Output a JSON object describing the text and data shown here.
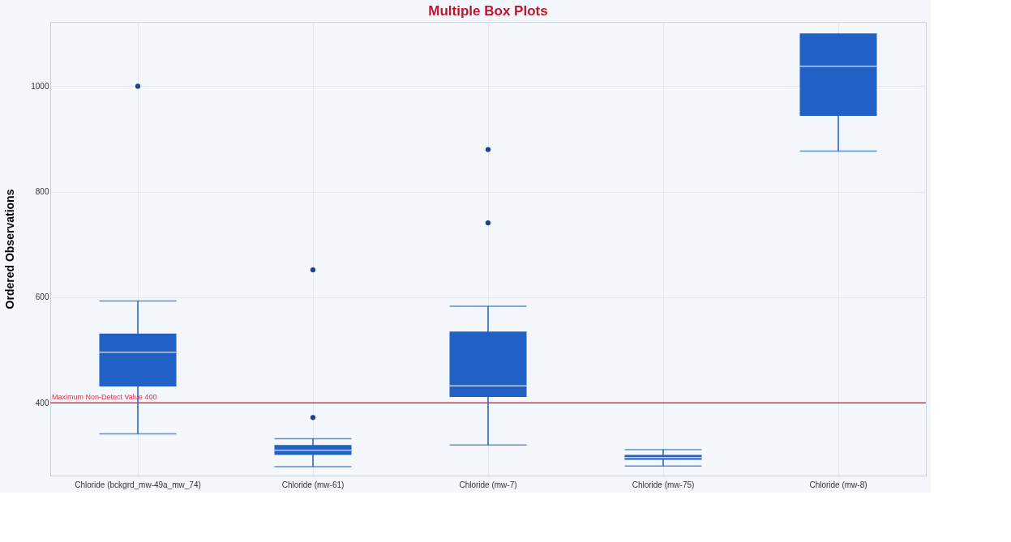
{
  "chart_data": {
    "type": "box",
    "title": "Multiple Box Plots",
    "ylabel": "Ordered Observations",
    "categories": [
      "Chloride (bckgrd_mw-49a_mw_74)",
      "Chloride (mw-61)",
      "Chloride (mw-7)",
      "Chloride (mw-75)",
      "Chloride (mw-8)"
    ],
    "boxes": [
      {
        "low": 341,
        "q1": 431,
        "median": 496,
        "q3": 531,
        "high": 593,
        "outliers": [
          1000
        ]
      },
      {
        "low": 279,
        "q1": 301,
        "median": 310,
        "q3": 320,
        "high": 332,
        "outliers": [
          652,
          372
        ]
      },
      {
        "low": 320,
        "q1": 411,
        "median": 432,
        "q3": 535,
        "high": 583,
        "outliers": [
          880,
          741
        ]
      },
      {
        "low": 280,
        "q1": 292,
        "median": 296,
        "q3": 301,
        "high": 311
      },
      {
        "low": 877,
        "q1": 944,
        "median": 1038,
        "q3": 1100,
        "high": 1100
      }
    ],
    "color": "#2160c4",
    "ylim": [
      262,
      1122
    ],
    "yticks": [
      400,
      600,
      800,
      1000
    ],
    "grid": true,
    "ref_lines": [
      {
        "axis": "y",
        "value": 400,
        "label": "Maximum Non-Detect Value 400",
        "color": "#e0304a"
      }
    ]
  }
}
